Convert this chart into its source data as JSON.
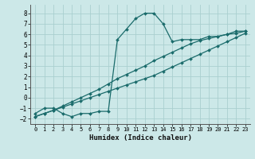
{
  "xlabel": "Humidex (Indice chaleur)",
  "ylabel": "",
  "xlim": [
    -0.5,
    23.5
  ],
  "ylim": [
    -2.5,
    8.8
  ],
  "xticks": [
    0,
    1,
    2,
    3,
    4,
    5,
    6,
    7,
    8,
    9,
    10,
    11,
    12,
    13,
    14,
    15,
    16,
    17,
    18,
    19,
    20,
    21,
    22,
    23
  ],
  "yticks": [
    -2,
    -1,
    0,
    1,
    2,
    3,
    4,
    5,
    6,
    7,
    8
  ],
  "bg_color": "#cce8e8",
  "grid_color": "#aacfcf",
  "line_color": "#1a6b6b",
  "curve1_x": [
    0,
    1,
    2,
    3,
    4,
    5,
    6,
    7,
    8,
    9,
    10,
    11,
    12,
    13,
    14,
    15,
    16,
    17,
    18,
    19,
    20,
    21,
    22,
    23
  ],
  "curve1_y": [
    -1.5,
    -1.0,
    -1.0,
    -1.5,
    -1.8,
    -1.5,
    -1.5,
    -1.3,
    -1.3,
    5.5,
    6.5,
    7.5,
    8.0,
    8.0,
    7.0,
    5.3,
    5.5,
    5.5,
    5.5,
    5.8,
    5.8,
    6.0,
    6.3,
    6.3
  ],
  "curve2_x": [
    0,
    1,
    2,
    3,
    4,
    5,
    6,
    7,
    8,
    9,
    10,
    11,
    12,
    13,
    14,
    15,
    16,
    17,
    18,
    19,
    20,
    21,
    22,
    23
  ],
  "curve2_y": [
    -1.8,
    -1.5,
    -1.2,
    -0.8,
    -0.4,
    0.0,
    0.4,
    0.8,
    1.3,
    1.8,
    2.2,
    2.6,
    3.0,
    3.5,
    3.9,
    4.3,
    4.7,
    5.1,
    5.4,
    5.6,
    5.8,
    6.0,
    6.1,
    6.3
  ],
  "curve3_x": [
    0,
    1,
    2,
    3,
    4,
    5,
    6,
    7,
    8,
    9,
    10,
    11,
    12,
    13,
    14,
    15,
    16,
    17,
    18,
    19,
    20,
    21,
    22,
    23
  ],
  "curve3_y": [
    -1.8,
    -1.5,
    -1.2,
    -0.9,
    -0.6,
    -0.3,
    0.0,
    0.3,
    0.6,
    0.9,
    1.2,
    1.5,
    1.8,
    2.1,
    2.5,
    2.9,
    3.3,
    3.7,
    4.1,
    4.5,
    4.9,
    5.3,
    5.7,
    6.1
  ]
}
